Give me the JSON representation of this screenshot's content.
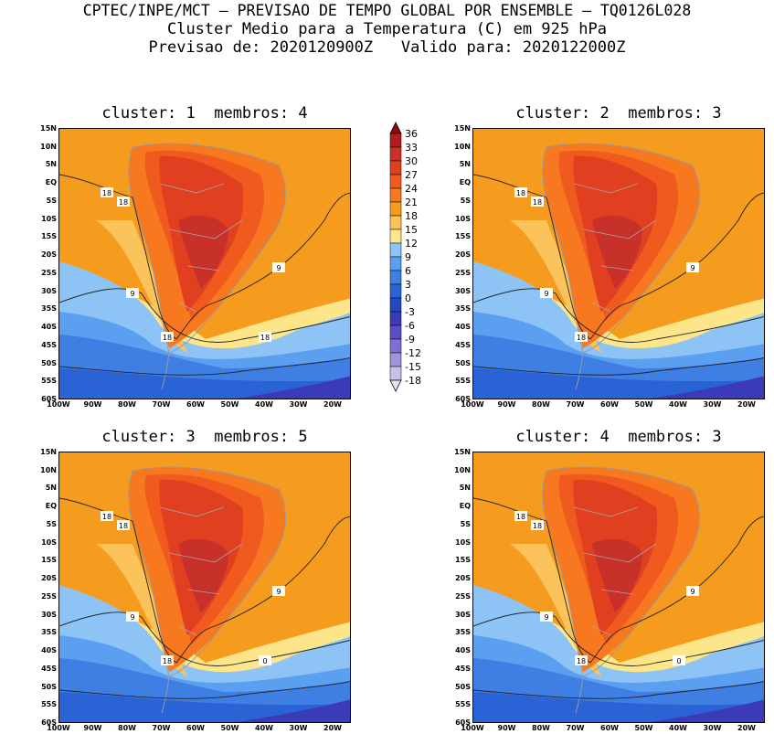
{
  "header": {
    "line1": "CPTEC/INPE/MCT – PREVISAO DE TEMPO GLOBAL POR ENSEMBLE – TQ0126L028",
    "line2": "Cluster Medio para a Temperatura (C) em 925 hPa",
    "line3": "Previsao de: 2020120900Z   Valido para: 2020122000Z"
  },
  "panels": [
    {
      "title": "cluster: 1  membros: 4",
      "contour_labels": [
        "18",
        "18",
        "18",
        "9",
        "9",
        "18"
      ]
    },
    {
      "title": "cluster: 2  membros: 3",
      "contour_labels": [
        "18",
        "18",
        "18",
        "9",
        "9"
      ]
    },
    {
      "title": "cluster: 3  membros: 5",
      "contour_labels": [
        "18",
        "18",
        "18",
        "9",
        "9",
        "0"
      ]
    },
    {
      "title": "cluster: 4  membros: 3",
      "contour_labels": [
        "18",
        "18",
        "18",
        "9",
        "9",
        "0"
      ]
    }
  ],
  "y_ticks": [
    "15N",
    "10N",
    "5N",
    "EQ",
    "5S",
    "10S",
    "15S",
    "20S",
    "25S",
    "30S",
    "35S",
    "40S",
    "45S",
    "50S",
    "55S",
    "60S"
  ],
  "x_ticks": [
    "100W",
    "90W",
    "80W",
    "70W",
    "60W",
    "50W",
    "40W",
    "30W",
    "20W"
  ],
  "colorbar": {
    "labels": [
      "36",
      "33",
      "30",
      "27",
      "24",
      "21",
      "18",
      "15",
      "12",
      "9",
      "6",
      "3",
      "0",
      "-3",
      "-6",
      "-9",
      "-12",
      "-15",
      "-18"
    ],
    "colors": [
      "#8b0d0d",
      "#b01d1d",
      "#c8302a",
      "#e04020",
      "#f05a1e",
      "#f7781e",
      "#f59c1e",
      "#fbc35a",
      "#fde68a",
      "#8ec3f5",
      "#5a9ff0",
      "#3f7fe3",
      "#2a63d5",
      "#2448c2",
      "#3b3ab8",
      "#5c4dc2",
      "#7e6fd0",
      "#a293dc",
      "#c9bfe9",
      "#e6e0f5"
    ]
  }
}
